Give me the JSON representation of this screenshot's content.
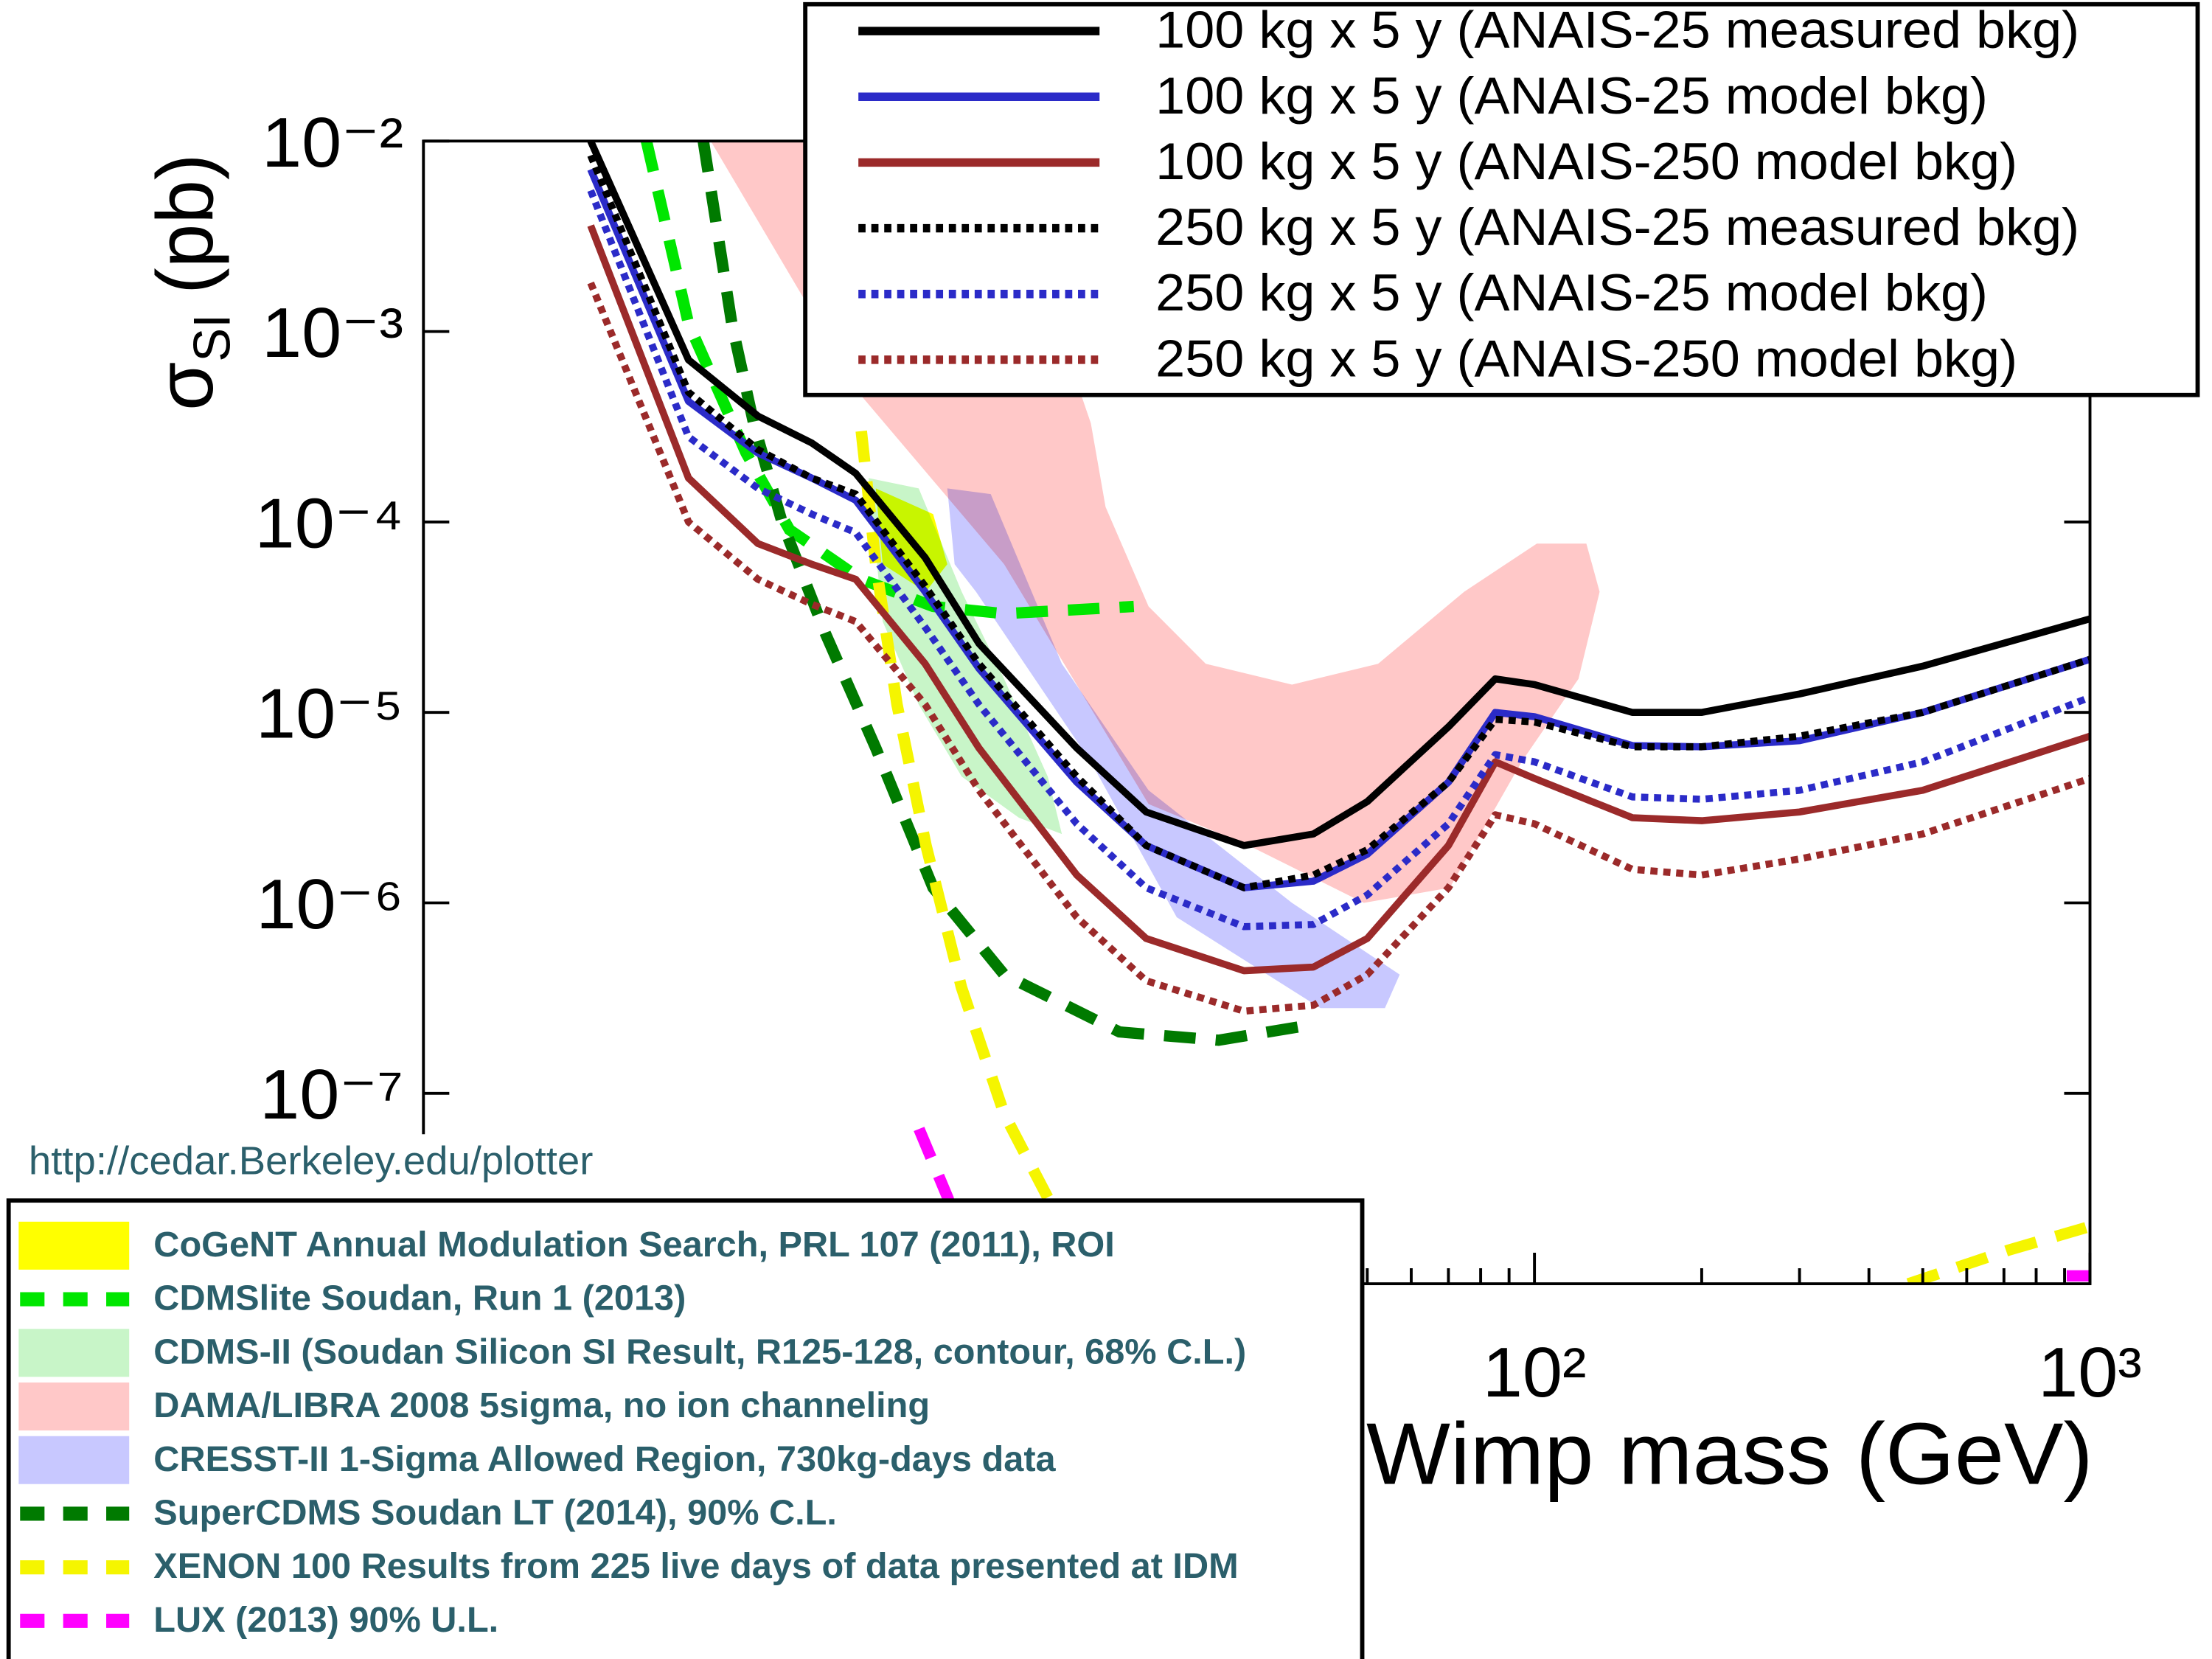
{
  "chart_data": {
    "type": "line",
    "ylabel": [
      "σ",
      "SI",
      "(pb)"
    ],
    "xlabel": "Wimp mass (GeV)",
    "xscale": "log",
    "yscale": "log",
    "xlim": [
      1,
      1000
    ],
    "ylim": [
      1e-08,
      0.01
    ],
    "xticks": [
      {
        "value": 100,
        "label": "10²"
      },
      {
        "value": 1000,
        "label": "10³"
      }
    ],
    "yticks": [
      {
        "value": 0.01,
        "label": "10⁻²"
      },
      {
        "value": 0.001,
        "label": "10⁻³"
      },
      {
        "value": 0.0001,
        "label": "10⁻⁴"
      },
      {
        "value": 1e-05,
        "label": "10⁻⁵"
      },
      {
        "value": 1e-06,
        "label": "10⁻⁶"
      },
      {
        "value": 1e-07,
        "label": "10⁻⁷"
      }
    ],
    "minor_ticks": true,
    "legend": "upper right",
    "x": [
      2,
      3,
      4,
      5,
      6,
      8,
      10,
      15,
      20,
      30,
      40,
      50,
      70,
      85,
      100,
      150,
      200,
      300,
      500,
      1000
    ],
    "series": [
      {
        "name": "100 kg x 5 y (ANAIS-25 measured bkg)",
        "color": "#000000",
        "style": "solid",
        "values": [
          0.01,
          0.00071,
          0.00036,
          0.00026,
          0.00018,
          6.5e-05,
          2.3e-05,
          6.5e-06,
          3e-06,
          2e-06,
          2.3e-06,
          3.4e-06,
          8.4e-06,
          1.5e-05,
          1.4e-05,
          1e-05,
          1e-05,
          1.25e-05,
          1.75e-05,
          3.1e-05
        ]
      },
      {
        "name": "100 kg x 5 y (ANAIS-25 model bkg)",
        "color": "#2b2bc8",
        "style": "solid",
        "values": [
          0.0071,
          0.00043,
          0.00023,
          0.00017,
          0.00013,
          4.3e-05,
          1.7e-05,
          4.3e-06,
          2e-06,
          1.2e-06,
          1.3e-06,
          1.8e-06,
          4.3e-06,
          1e-05,
          9.5e-06,
          6.7e-06,
          6.6e-06,
          7.1e-06,
          1e-05,
          1.9e-05
        ]
      },
      {
        "name": "100 kg x 5 y (ANAIS-250 model bkg)",
        "color": "#9b2a2a",
        "style": "solid",
        "values": [
          0.0036,
          0.00017,
          7.7e-05,
          6e-05,
          5e-05,
          1.8e-05,
          6.5e-06,
          1.4e-06,
          6.5e-07,
          4.4e-07,
          4.6e-07,
          6.5e-07,
          2e-06,
          5.5e-06,
          4.5e-06,
          2.8e-06,
          2.7e-06,
          3e-06,
          3.9e-06,
          7.5e-06
        ]
      },
      {
        "name": "250 kg x 5 y (ANAIS-25 measured bkg)",
        "color": "#000000",
        "style": "dotted",
        "values": [
          0.0084,
          0.00048,
          0.00024,
          0.00017,
          0.00014,
          4.6e-05,
          1.8e-05,
          4.6e-06,
          2e-06,
          1.2e-06,
          1.4e-06,
          1.9e-06,
          4.3e-06,
          9.2e-06,
          8.9e-06,
          6.6e-06,
          6.6e-06,
          7.5e-06,
          1e-05,
          1.9e-05
        ]
      },
      {
        "name": "250 kg x 5 y (ANAIS-25 model bkg)",
        "color": "#2b2bc8",
        "style": "dotted",
        "values": [
          0.0055,
          0.00028,
          0.00015,
          0.00011,
          8.8e-05,
          2.8e-05,
          1.1e-05,
          2.6e-06,
          1.2e-06,
          7.5e-07,
          7.7e-07,
          1.1e-06,
          2.6e-06,
          6e-06,
          5.5e-06,
          3.6e-06,
          3.5e-06,
          3.9e-06,
          5.5e-06,
          1.2e-05
        ]
      },
      {
        "name": "250 kg x 5 y (ANAIS-250 model bkg)",
        "color": "#9b2a2a",
        "style": "dotted",
        "values": [
          0.0018,
          0.0001,
          5e-05,
          3.7e-05,
          3e-05,
          1.1e-05,
          3.9e-06,
          8.4e-07,
          3.9e-07,
          2.7e-07,
          2.9e-07,
          4.2e-07,
          1.2e-06,
          2.9e-06,
          2.6e-06,
          1.5e-06,
          1.4e-06,
          1.7e-06,
          2.3e-06,
          4.5e-06
        ]
      }
    ],
    "source": "http://cedar.Berkeley.edu/plotter",
    "experiments": [
      {
        "name": "CoGeNT Annual Modulation Search, PRL 107 (2011), ROI",
        "color": "#ffff00",
        "kind": "region",
        "x": [
          6.52,
          8.27,
          8.77,
          8.02,
          6.71
        ],
        "values": [
          0.00015,
          0.00011,
          6e-05,
          4.3e-05,
          6e-05
        ]
      },
      {
        "name": "CDMSlite Soudan, Run 1 (2013)",
        "color": "#00e600",
        "kind": "line",
        "x": [
          2.52,
          3.0,
          3.81,
          4.56,
          6.14,
          8.27,
          11.1,
          19.0
        ],
        "values": [
          0.01,
          0.0011,
          0.00023,
          9.1e-05,
          5e-05,
          3.6e-05,
          3.3e-05,
          3.6e-05
        ]
      },
      {
        "name": "CDMS-II (Soudan Silicon SI Result, R125-128, contour, 68% C.L.)",
        "color": "#c8f5c8",
        "kind": "region",
        "x": [
          6.33,
          7.79,
          9.31,
          11.1,
          13.3,
          14.1,
          11.8,
          9.31,
          7.79,
          6.71
        ],
        "values": [
          0.00017,
          0.00015,
          4.3e-05,
          1.5e-05,
          4.6e-06,
          2.3e-06,
          2.8e-06,
          4.6e-06,
          1.1e-05,
          3e-05
        ]
      },
      {
        "name": "DAMA/LIBRA 2008 5sigma, no ion channeling",
        "color": "#ffc8c8",
        "kind": "region",
        "x": [
          3.29,
          6.14,
          11.1,
          20.2,
          30.6,
          49.3,
          70.4,
          94.8,
          120,
          131,
          124,
          101,
          74.7,
          52.3,
          36.6,
          25.6,
          20.2,
          16.9,
          15.9,
          14.1,
          11.1,
          7.79,
          6.14
        ],
        "values": [
          0.01,
          0.00046,
          6e-05,
          3.3e-06,
          2e-06,
          1e-06,
          1.2e-06,
          5.5e-06,
          1.5e-05,
          4.3e-05,
          7.7e-05,
          7.7e-05,
          4.3e-05,
          1.8e-05,
          1.4e-05,
          1.8e-05,
          3.6e-05,
          0.00012,
          0.00033,
          0.00092,
          0.0022,
          0.006,
          0.01
        ]
      },
      {
        "name": "CRESST-II 1-Sigma Allowed Region, 730kg-days data",
        "color": "#c8c8ff",
        "kind": "region",
        "x": [
          8.77,
          10.5,
          14.1,
          20.2,
          36.6,
          57.2,
          53.8,
          41.2,
          22.7,
          15.9,
          9.88,
          9.04
        ],
        "values": [
          0.00015,
          0.00014,
          1.8e-05,
          3.9e-06,
          1e-06,
          4.2e-07,
          2.8e-07,
          2.8e-07,
          8.4e-07,
          5.5e-06,
          4.3e-05,
          6e-05
        ]
      },
      {
        "name": "SuperCDMS Soudan LT (2014), 90% C.L.",
        "color": "#007a00",
        "kind": "line",
        "x": [
          3.19,
          3.59,
          3.93,
          4.42,
          5.29,
          6.52,
          8.27,
          11.1,
          17.9,
          27.0,
          40.0
        ],
        "values": [
          0.01,
          0.0011,
          0.00033,
          0.0001,
          2.6e-05,
          6.5e-06,
          1.2e-06,
          4.2e-07,
          2.1e-07,
          1.9e-07,
          2.3e-07
        ]
      },
      {
        "name": "XENON 100 Results from 225 live days of data presented at IDM",
        "color": "#f5f500",
        "kind": "line",
        "x": [
          6.14,
          6.52,
          7.12,
          8.03,
          9.3,
          11.1,
          13.7,
          null,
          471,
          713,
          1000
        ],
        "values": [
          0.0003,
          6e-05,
          1.1e-05,
          2e-06,
          3.6e-07,
          7.8e-08,
          2.4e-08,
          null,
          1e-08,
          1.5e-08,
          2e-08
        ]
      },
      {
        "name": "LUX (2013) 90% U.L.",
        "color": "#ff00ff",
        "kind": "line",
        "x": [
          7.8,
          8.8,
          9.2,
          null,
          908,
          1000
        ],
        "values": [
          6.5e-08,
          2.8e-08,
          1.7e-08,
          null,
          1.1e-08,
          1.1e-08
        ]
      }
    ]
  }
}
